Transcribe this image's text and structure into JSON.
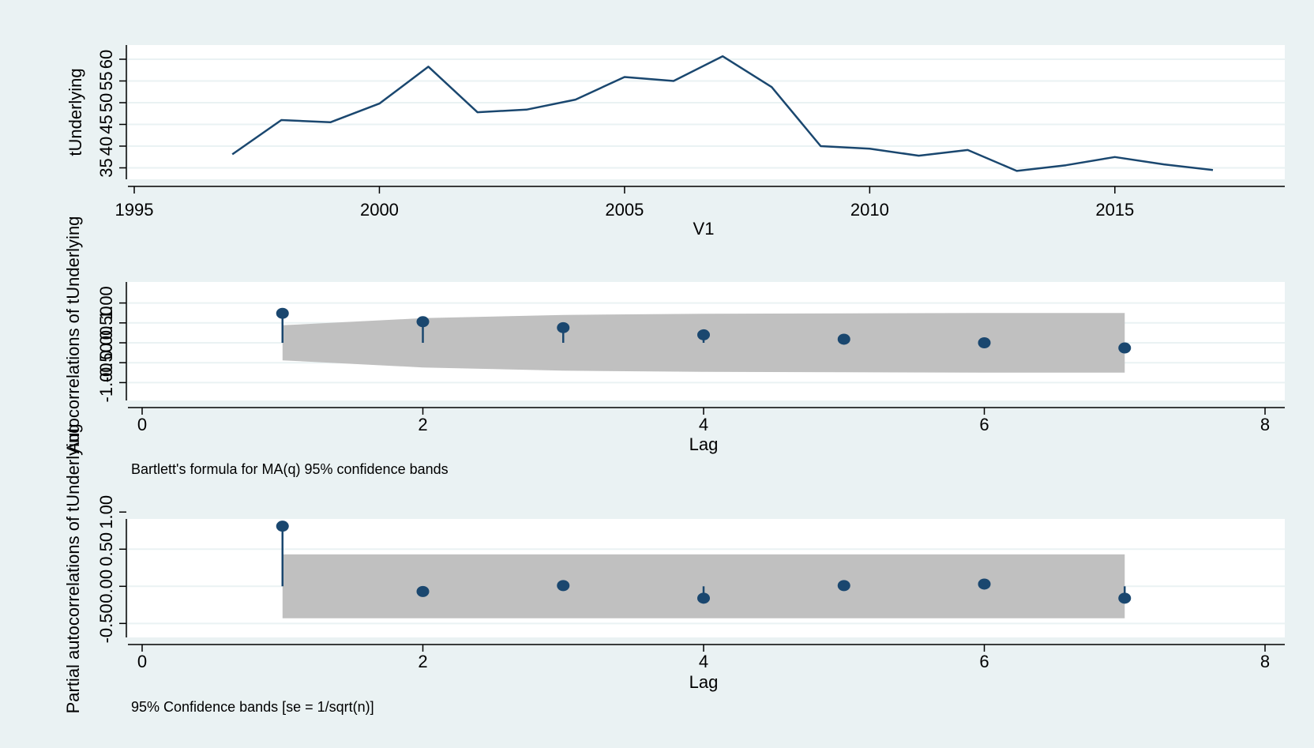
{
  "style": {
    "outer_background": "#eaf2f3",
    "plot_background": "#ffffff",
    "grid_color": "#eaf2f3",
    "series_color": "#1a476f",
    "band_color": "#c0c0c0",
    "axis_color": "#000000"
  },
  "chart_data": [
    {
      "type": "line",
      "xlabel": "V1",
      "ylabel": "tUnderlying",
      "xlim": [
        1995,
        2017
      ],
      "ylim": [
        34,
        62
      ],
      "x_ticks": [
        "1995",
        "2000",
        "2005",
        "2010",
        "2015"
      ],
      "y_ticks": [
        "35",
        "40",
        "45",
        "50",
        "55",
        "60"
      ],
      "grid": true,
      "series": [
        {
          "x": [
            1997,
            1998,
            1999,
            2000,
            2001,
            2002,
            2003,
            2004,
            2005,
            2006,
            2007,
            2008,
            2009,
            2010,
            2011,
            2012,
            2013,
            2014,
            2015,
            2016,
            2017
          ],
          "values": [
            38.1,
            46.0,
            45.5,
            49.8,
            58.3,
            47.8,
            48.4,
            50.7,
            55.9,
            55.0,
            60.7,
            53.6,
            40.0,
            39.4,
            37.8,
            39.1,
            34.3,
            35.6,
            37.5,
            35.8,
            34.5
          ]
        }
      ]
    },
    {
      "type": "scatter",
      "xlabel": "Lag",
      "ylabel": "Autocorrelations of tUnderlying",
      "note": "Bartlett's formula for MA(q) 95% confidence bands",
      "xlim": [
        0,
        8
      ],
      "ylim": [
        -1.25,
        1.25
      ],
      "x_ticks": [
        "0",
        "2",
        "4",
        "6",
        "8"
      ],
      "y_ticks": [
        "-1.00",
        "-0.50",
        "0.00",
        "0.50",
        "1.00"
      ],
      "grid": true,
      "series": [
        {
          "x": [
            1,
            2,
            3,
            4,
            5,
            6,
            7
          ],
          "values": [
            0.74,
            0.53,
            0.38,
            0.2,
            0.09,
            0.0,
            -0.13
          ]
        }
      ],
      "confidence_band": {
        "x": [
          1,
          2,
          3,
          4,
          5,
          6,
          7
        ],
        "upper": [
          0.44,
          0.62,
          0.7,
          0.73,
          0.74,
          0.75,
          0.75
        ],
        "lower": [
          -0.44,
          -0.62,
          -0.7,
          -0.73,
          -0.74,
          -0.75,
          -0.75
        ]
      }
    },
    {
      "type": "scatter",
      "xlabel": "Lag",
      "ylabel": "Partial autocorrelations of tUnderlying",
      "note": "95% Confidence bands [se = 1/sqrt(n)]",
      "xlim": [
        0,
        8
      ],
      "ylim": [
        -0.72,
        1.12
      ],
      "x_ticks": [
        "0",
        "2",
        "4",
        "6",
        "8"
      ],
      "y_ticks": [
        "-0.50",
        "0.00",
        "0.50",
        "1.00"
      ],
      "grid": true,
      "series": [
        {
          "x": [
            1,
            2,
            3,
            4,
            5,
            6,
            7
          ],
          "values": [
            0.81,
            -0.07,
            0.01,
            -0.16,
            0.01,
            0.03,
            -0.16
          ]
        }
      ],
      "confidence_band": {
        "x": [
          1,
          7
        ],
        "upper": [
          0.43,
          0.43
        ],
        "lower": [
          -0.43,
          -0.43
        ]
      }
    }
  ]
}
